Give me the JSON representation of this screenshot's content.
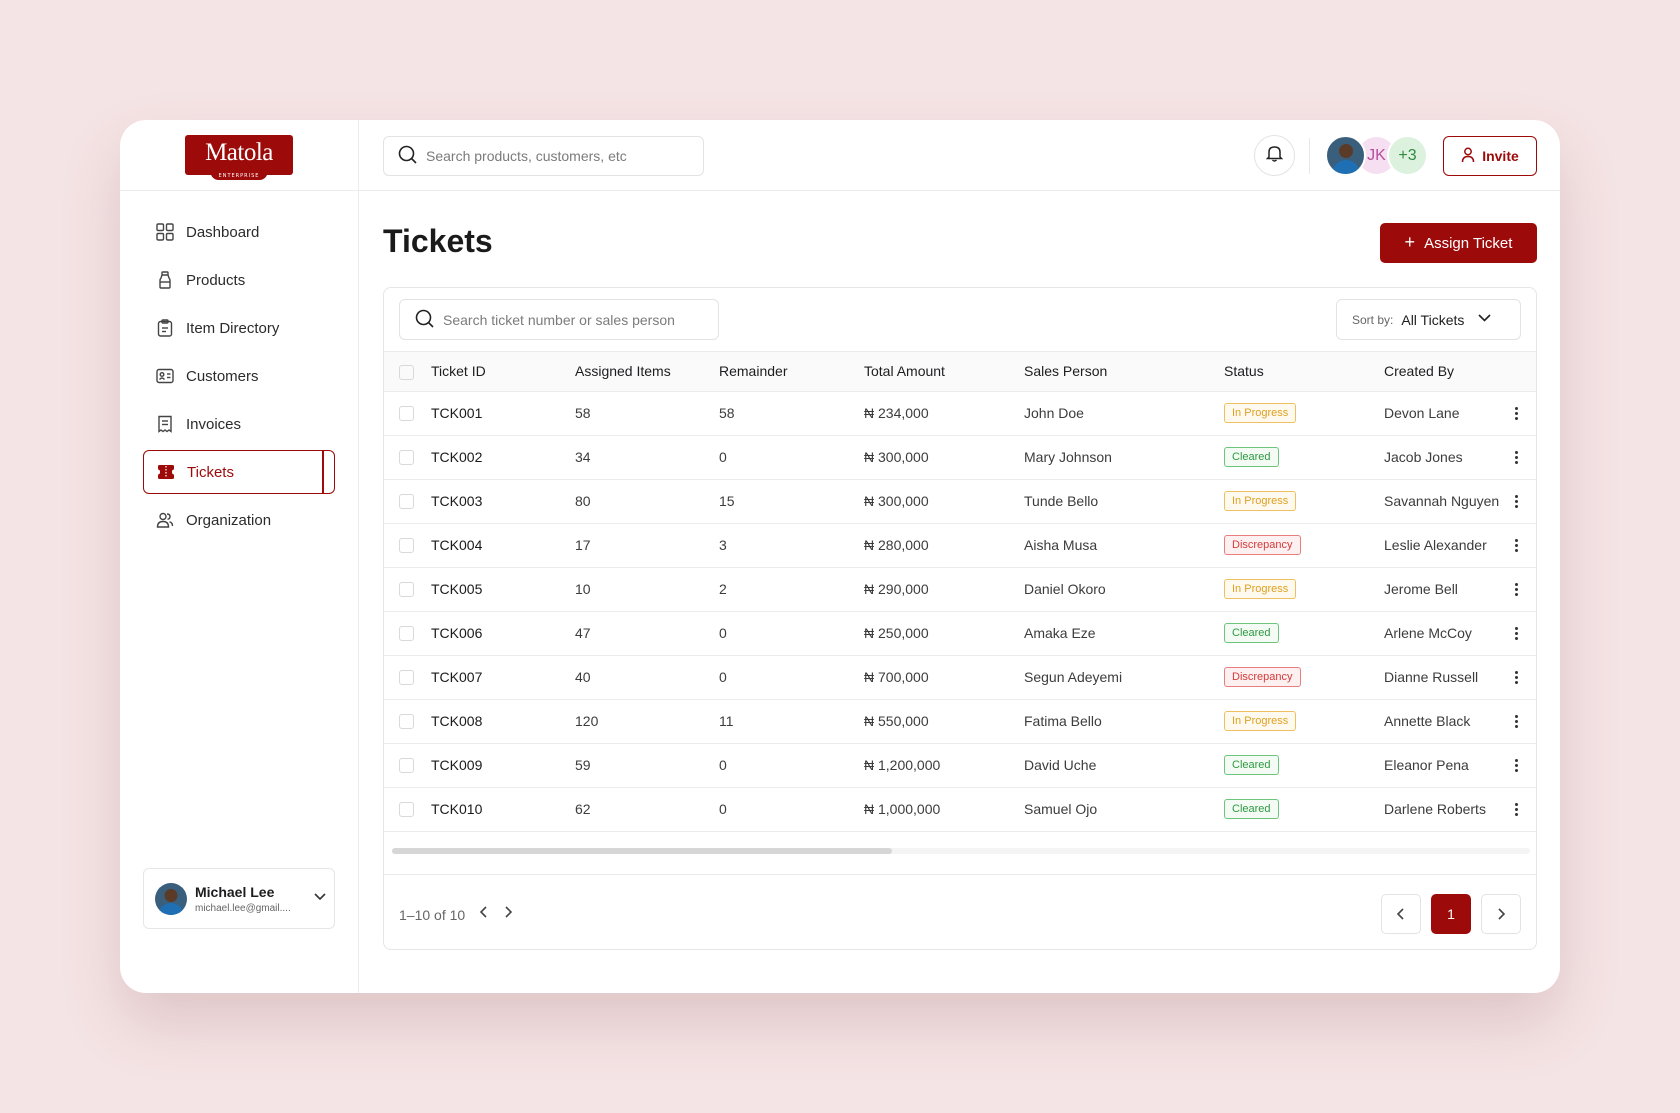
{
  "brand": {
    "name": "Matola",
    "sub": "ENTERPRISE"
  },
  "colors": {
    "accent": "#9c0a0a",
    "in_progress": "#e0a020",
    "cleared": "#2e9a42",
    "discrepancy": "#d63a3a"
  },
  "sidebar": {
    "items": [
      {
        "label": "Dashboard",
        "icon": "grid-icon"
      },
      {
        "label": "Products",
        "icon": "bottle-icon"
      },
      {
        "label": "Item Directory",
        "icon": "clipboard-icon"
      },
      {
        "label": "Customers",
        "icon": "contact-card-icon"
      },
      {
        "label": "Invoices",
        "icon": "receipt-icon"
      },
      {
        "label": "Tickets",
        "icon": "ticket-icon",
        "active": true
      },
      {
        "label": "Organization",
        "icon": "users-icon"
      }
    ],
    "user": {
      "name": "Michael Lee",
      "email": "michael.lee@gmail...."
    }
  },
  "topbar": {
    "search_placeholder": "Search products, customers, etc",
    "avatar_initials": "JK",
    "avatar_more": "+3",
    "invite_label": "Invite"
  },
  "main": {
    "title": "Tickets",
    "assign_label": "Assign Ticket",
    "search_placeholder": "Search ticket number or sales person",
    "sort_label": "Sort by:",
    "sort_value": "All Tickets"
  },
  "table": {
    "columns": [
      "Ticket ID",
      "Assigned Items",
      "Remainder",
      "Total Amount",
      "Sales Person",
      "Status",
      "Created By"
    ],
    "rows": [
      {
        "id": "TCK001",
        "assigned": "58",
        "remainder": "58",
        "amount": "₦ 234,000",
        "sales": "John Doe",
        "status": "In Progress",
        "status_key": "inprogress",
        "created": "Devon Lane"
      },
      {
        "id": "TCK002",
        "assigned": "34",
        "remainder": "0",
        "amount": "₦ 300,000",
        "sales": "Mary Johnson",
        "status": "Cleared",
        "status_key": "cleared",
        "created": "Jacob Jones"
      },
      {
        "id": "TCK003",
        "assigned": "80",
        "remainder": "15",
        "amount": "₦ 300,000",
        "sales": "Tunde Bello",
        "status": "In Progress",
        "status_key": "inprogress",
        "created": "Savannah Nguyen"
      },
      {
        "id": "TCK004",
        "assigned": "17",
        "remainder": "3",
        "amount": "₦ 280,000",
        "sales": "Aisha Musa",
        "status": "Discrepancy",
        "status_key": "discrepancy",
        "created": "Leslie Alexander"
      },
      {
        "id": "TCK005",
        "assigned": "10",
        "remainder": "2",
        "amount": "₦ 290,000",
        "sales": "Daniel Okoro",
        "status": "In Progress",
        "status_key": "inprogress",
        "created": "Jerome Bell"
      },
      {
        "id": "TCK006",
        "assigned": "47",
        "remainder": "0",
        "amount": "₦ 250,000",
        "sales": "Amaka Eze",
        "status": "Cleared",
        "status_key": "cleared",
        "created": "Arlene McCoy"
      },
      {
        "id": "TCK007",
        "assigned": "40",
        "remainder": "0",
        "amount": "₦ 700,000",
        "sales": "Segun Adeyemi",
        "status": "Discrepancy",
        "status_key": "discrepancy",
        "created": "Dianne Russell"
      },
      {
        "id": "TCK008",
        "assigned": "120",
        "remainder": "11",
        "amount": "₦ 550,000",
        "sales": "Fatima Bello",
        "status": "In Progress",
        "status_key": "inprogress",
        "created": "Annette Black"
      },
      {
        "id": "TCK009",
        "assigned": "59",
        "remainder": "0",
        "amount": "₦ 1,200,000",
        "sales": "David Uche",
        "status": "Cleared",
        "status_key": "cleared",
        "created": "Eleanor Pena"
      },
      {
        "id": "TCK010",
        "assigned": "62",
        "remainder": "0",
        "amount": "₦ 1,000,000",
        "sales": "Samuel Ojo",
        "status": "Cleared",
        "status_key": "cleared",
        "created": "Darlene Roberts"
      }
    ]
  },
  "pagination": {
    "range": "1–10 of 10",
    "current": "1"
  }
}
